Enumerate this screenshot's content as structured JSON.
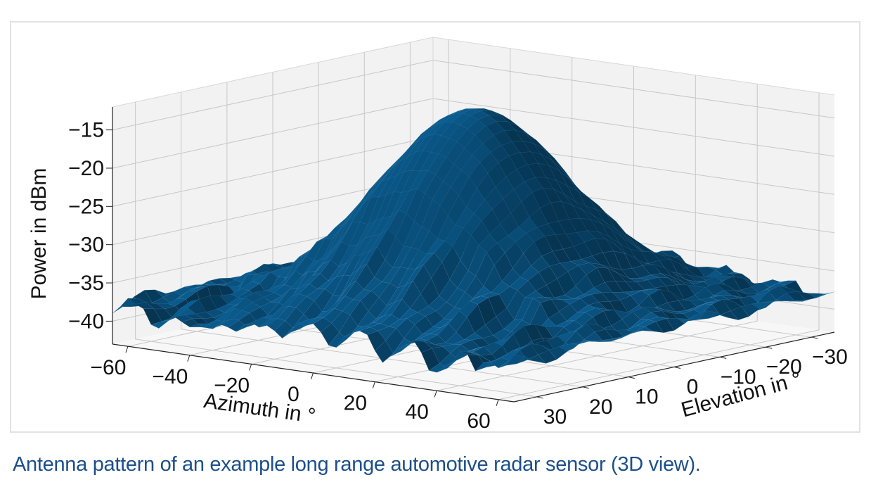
{
  "caption": "Antenna pattern of an example long range automotive radar sensor (3D view).",
  "chart_data": {
    "type": "surface3d",
    "title": "",
    "xlabel": "Azimuth in °",
    "ylabel": "Elevation in °",
    "zlabel": "Power in dBm",
    "x_ticks": [
      "−60",
      "−40",
      "−20",
      "0",
      "20",
      "40",
      "60"
    ],
    "y_ticks": [
      "30",
      "20",
      "10",
      "0",
      "−10",
      "−20",
      "−30"
    ],
    "z_ticks": [
      "−15",
      "−20",
      "−25",
      "−30",
      "−35",
      "−40"
    ],
    "xlim": [
      -65,
      65
    ],
    "ylim": [
      -35,
      35
    ],
    "zlim": [
      -43,
      -12
    ],
    "grid": true,
    "surface": {
      "azimuth": [
        -65,
        -60,
        -50,
        -40,
        -30,
        -20,
        -10,
        0,
        10,
        20,
        30,
        40,
        50,
        60,
        65
      ],
      "elevation": [
        -35,
        -30,
        -20,
        -10,
        0,
        10,
        20,
        30,
        35
      ],
      "peak_power_dbm": -13,
      "floor_power_dbm": -38,
      "peak_location": {
        "azimuth": 0,
        "elevation": 0
      }
    },
    "colors": {
      "surface": "#0a5a8c",
      "grid": "#c7c7c7",
      "pane": "#f2f2f2"
    }
  }
}
